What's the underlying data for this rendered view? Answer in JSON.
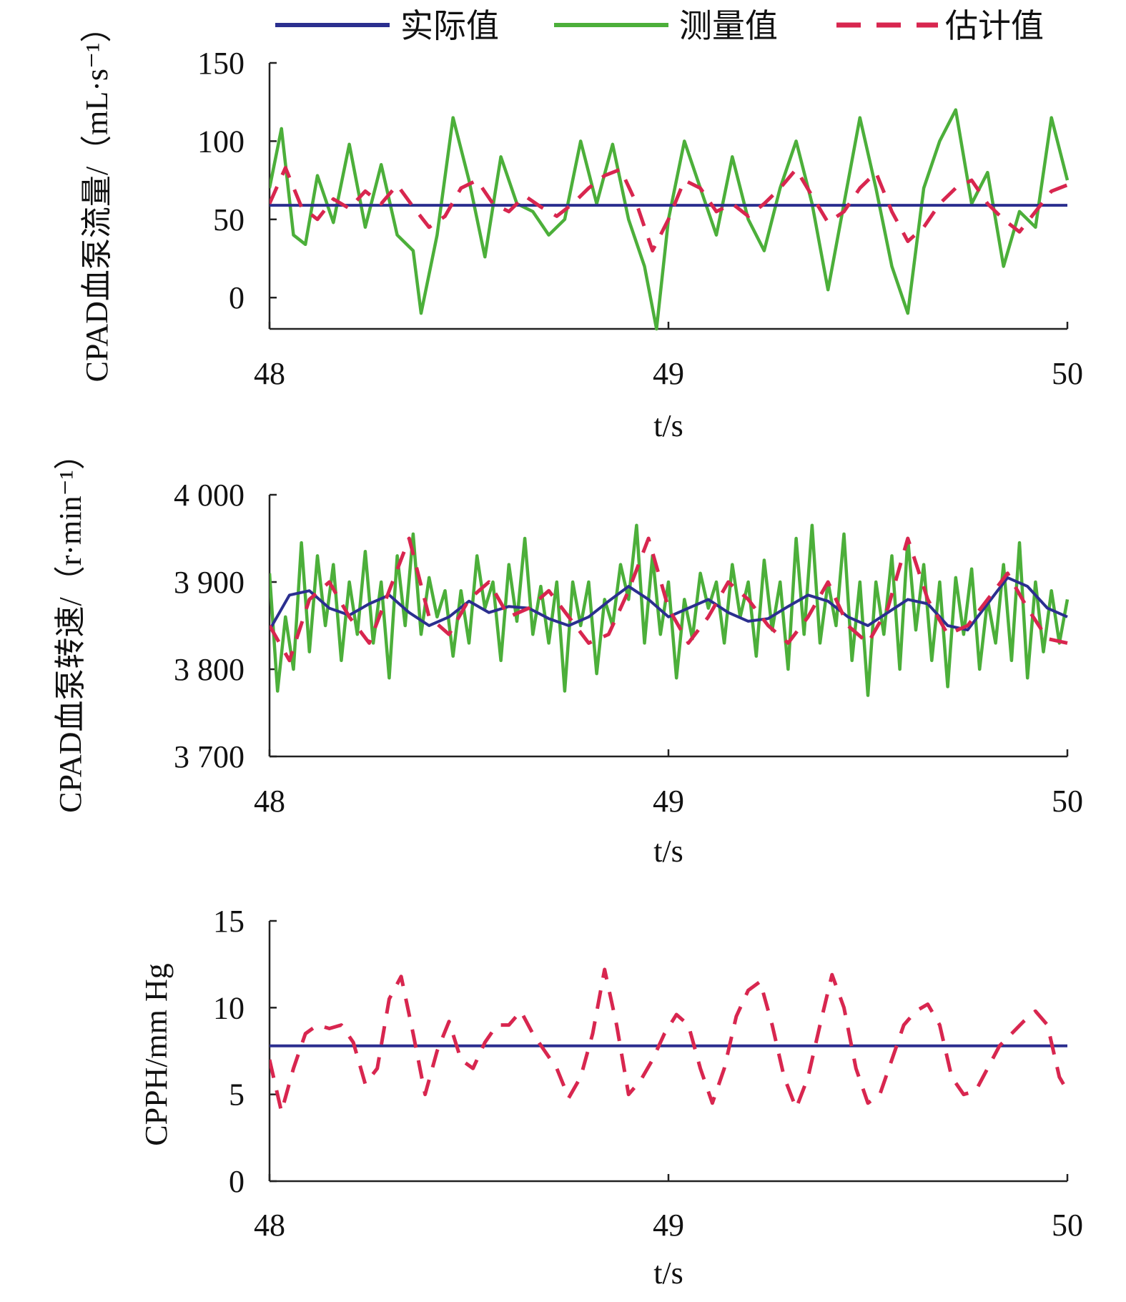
{
  "legend": [
    {
      "label": "实际值",
      "color": "#2b2f8f",
      "dash": "solid"
    },
    {
      "label": "测量值",
      "color": "#4caf3a",
      "dash": "solid"
    },
    {
      "label": "估计值",
      "color": "#d8264f",
      "dash": "dashed"
    }
  ],
  "chart_data": [
    {
      "type": "line",
      "ylabel": "CPAD血泵流量/（mL·s⁻¹）",
      "xlabel": "t/s",
      "xlim": [
        48,
        50
      ],
      "ylim": [
        -20,
        150
      ],
      "xticks": [
        "48",
        "49",
        "50"
      ],
      "yticks": [
        {
          "value": 0,
          "label": "0"
        },
        {
          "value": 50,
          "label": "50"
        },
        {
          "value": 100,
          "label": "100"
        },
        {
          "value": 150,
          "label": "150"
        }
      ],
      "series": [
        {
          "name": "实际值",
          "color": "#2b2f8f",
          "dash": "solid",
          "x": [
            48.0,
            50.0
          ],
          "values": [
            59,
            59
          ]
        },
        {
          "name": "测量值",
          "color": "#4caf3a",
          "dash": "solid",
          "x": [
            48.0,
            48.03,
            48.06,
            48.09,
            48.12,
            48.16,
            48.2,
            48.24,
            48.28,
            48.32,
            48.36,
            48.38,
            48.42,
            48.46,
            48.5,
            48.54,
            48.58,
            48.62,
            48.66,
            48.7,
            48.74,
            48.78,
            48.82,
            48.86,
            48.9,
            48.94,
            48.97,
            49.0,
            49.04,
            49.08,
            49.12,
            49.16,
            49.2,
            49.24,
            49.28,
            49.32,
            49.36,
            49.4,
            49.44,
            49.48,
            49.52,
            49.56,
            49.6,
            49.64,
            49.68,
            49.72,
            49.76,
            49.8,
            49.84,
            49.88,
            49.92,
            49.96,
            50.0
          ],
          "values": [
            70,
            108,
            40,
            34,
            78,
            48,
            98,
            45,
            85,
            40,
            30,
            -10,
            40,
            115,
            75,
            26,
            90,
            60,
            55,
            40,
            50,
            100,
            60,
            98,
            50,
            20,
            -20,
            50,
            100,
            70,
            40,
            90,
            50,
            30,
            70,
            100,
            60,
            5,
            60,
            115,
            70,
            20,
            -10,
            70,
            100,
            120,
            60,
            80,
            20,
            55,
            45,
            115,
            75
          ]
        },
        {
          "name": "估计值",
          "color": "#d8264f",
          "dash": "dashed",
          "x": [
            48.0,
            48.04,
            48.08,
            48.12,
            48.16,
            48.2,
            48.24,
            48.28,
            48.32,
            48.36,
            48.4,
            48.44,
            48.48,
            48.52,
            48.56,
            48.6,
            48.64,
            48.68,
            48.72,
            48.76,
            48.8,
            48.84,
            48.88,
            48.92,
            48.96,
            49.0,
            49.04,
            49.08,
            49.12,
            49.16,
            49.2,
            49.24,
            49.28,
            49.32,
            49.36,
            49.4,
            49.44,
            49.48,
            49.52,
            49.56,
            49.6,
            49.64,
            49.68,
            49.72,
            49.76,
            49.8,
            49.84,
            49.88,
            49.92,
            49.96,
            50.0
          ],
          "values": [
            60,
            83,
            58,
            50,
            63,
            57,
            68,
            60,
            72,
            58,
            45,
            52,
            70,
            75,
            60,
            55,
            65,
            58,
            52,
            60,
            70,
            78,
            82,
            60,
            30,
            50,
            75,
            70,
            55,
            60,
            52,
            60,
            70,
            82,
            65,
            48,
            55,
            70,
            80,
            55,
            36,
            45,
            60,
            70,
            75,
            60,
            50,
            42,
            55,
            68,
            72
          ]
        }
      ]
    },
    {
      "type": "line",
      "ylabel": "CPAD血泵转速/（r·min⁻¹）",
      "xlabel": "t/s",
      "xlim": [
        48,
        50
      ],
      "ylim": [
        3700,
        4000
      ],
      "xticks": [
        "48",
        "49",
        "50"
      ],
      "yticks": [
        {
          "value": 3700,
          "label": "3 700"
        },
        {
          "value": 3800,
          "label": "3 800"
        },
        {
          "value": 3900,
          "label": "3 900"
        },
        {
          "value": 4000,
          "label": "4 000"
        }
      ],
      "series": [
        {
          "name": "实际值",
          "color": "#2b2f8f",
          "dash": "solid",
          "x": [
            48.0,
            48.05,
            48.1,
            48.15,
            48.2,
            48.25,
            48.3,
            48.35,
            48.4,
            48.45,
            48.5,
            48.55,
            48.6,
            48.65,
            48.7,
            48.75,
            48.8,
            48.85,
            48.9,
            48.95,
            49.0,
            49.05,
            49.1,
            49.15,
            49.2,
            49.25,
            49.3,
            49.35,
            49.4,
            49.45,
            49.5,
            49.55,
            49.6,
            49.65,
            49.7,
            49.75,
            49.8,
            49.85,
            49.9,
            49.95,
            50.0
          ],
          "values": [
            3845,
            3885,
            3890,
            3870,
            3862,
            3875,
            3885,
            3865,
            3850,
            3860,
            3878,
            3865,
            3872,
            3870,
            3858,
            3850,
            3860,
            3878,
            3895,
            3880,
            3860,
            3870,
            3880,
            3865,
            3855,
            3858,
            3872,
            3885,
            3878,
            3860,
            3850,
            3865,
            3880,
            3875,
            3850,
            3845,
            3875,
            3905,
            3895,
            3870,
            3860
          ]
        },
        {
          "name": "测量值",
          "color": "#4caf3a",
          "dash": "solid",
          "x": [
            48.0,
            48.02,
            48.04,
            48.06,
            48.08,
            48.1,
            48.12,
            48.14,
            48.16,
            48.18,
            48.2,
            48.22,
            48.24,
            48.26,
            48.28,
            48.3,
            48.32,
            48.34,
            48.36,
            48.38,
            48.4,
            48.42,
            48.44,
            48.46,
            48.48,
            48.5,
            48.52,
            48.54,
            48.56,
            48.58,
            48.6,
            48.62,
            48.64,
            48.66,
            48.68,
            48.7,
            48.72,
            48.74,
            48.76,
            48.78,
            48.8,
            48.82,
            48.84,
            48.86,
            48.88,
            48.9,
            48.92,
            48.94,
            48.96,
            48.98,
            49.0,
            49.02,
            49.04,
            49.06,
            49.08,
            49.1,
            49.12,
            49.14,
            49.16,
            49.18,
            49.2,
            49.22,
            49.24,
            49.26,
            49.28,
            49.3,
            49.32,
            49.34,
            49.36,
            49.38,
            49.4,
            49.42,
            49.44,
            49.46,
            49.48,
            49.5,
            49.52,
            49.54,
            49.56,
            49.58,
            49.6,
            49.62,
            49.64,
            49.66,
            49.68,
            49.7,
            49.72,
            49.74,
            49.76,
            49.78,
            49.8,
            49.82,
            49.84,
            49.86,
            49.88,
            49.9,
            49.92,
            49.94,
            49.96,
            49.98,
            50.0
          ],
          "values": [
            3910,
            3775,
            3860,
            3800,
            3945,
            3820,
            3930,
            3850,
            3920,
            3810,
            3900,
            3840,
            3935,
            3830,
            3900,
            3790,
            3930,
            3850,
            3955,
            3840,
            3905,
            3860,
            3890,
            3815,
            3890,
            3830,
            3930,
            3870,
            3900,
            3810,
            3920,
            3855,
            3950,
            3840,
            3895,
            3830,
            3900,
            3775,
            3900,
            3850,
            3900,
            3795,
            3880,
            3850,
            3920,
            3880,
            3965,
            3830,
            3930,
            3840,
            3900,
            3790,
            3880,
            3835,
            3910,
            3870,
            3900,
            3830,
            3920,
            3860,
            3900,
            3815,
            3925,
            3845,
            3900,
            3800,
            3950,
            3840,
            3965,
            3830,
            3900,
            3850,
            3955,
            3810,
            3900,
            3770,
            3900,
            3840,
            3930,
            3800,
            3950,
            3845,
            3920,
            3810,
            3900,
            3780,
            3905,
            3840,
            3915,
            3800,
            3880,
            3830,
            3920,
            3810,
            3945,
            3790,
            3900,
            3820,
            3890,
            3830,
            3880
          ]
        },
        {
          "name": "估计值",
          "color": "#d8264f",
          "dash": "dashed",
          "x": [
            48.0,
            48.05,
            48.1,
            48.15,
            48.2,
            48.25,
            48.3,
            48.35,
            48.4,
            48.45,
            48.5,
            48.55,
            48.6,
            48.65,
            48.7,
            48.75,
            48.8,
            48.85,
            48.9,
            48.95,
            49.0,
            49.05,
            49.1,
            49.15,
            49.2,
            49.25,
            49.3,
            49.35,
            49.4,
            49.45,
            49.5,
            49.55,
            49.6,
            49.65,
            49.7,
            49.75,
            49.8,
            49.85,
            49.9,
            49.95,
            50.0
          ],
          "values": [
            3850,
            3810,
            3880,
            3900,
            3860,
            3830,
            3890,
            3950,
            3860,
            3840,
            3880,
            3900,
            3860,
            3870,
            3890,
            3860,
            3830,
            3840,
            3890,
            3950,
            3870,
            3830,
            3860,
            3900,
            3880,
            3850,
            3830,
            3860,
            3900,
            3850,
            3830,
            3870,
            3950,
            3880,
            3840,
            3850,
            3880,
            3910,
            3870,
            3835,
            3830
          ]
        }
      ]
    },
    {
      "type": "line",
      "ylabel": "CPPH/mm Hg",
      "xlabel": "t/s",
      "xlim": [
        48,
        50
      ],
      "ylim": [
        0,
        15
      ],
      "xticks": [
        "48",
        "49",
        "50"
      ],
      "yticks": [
        {
          "value": 0,
          "label": "0"
        },
        {
          "value": 5,
          "label": "5"
        },
        {
          "value": 10,
          "label": "10"
        },
        {
          "value": 15,
          "label": "15"
        }
      ],
      "series": [
        {
          "name": "实际值",
          "color": "#2b2f8f",
          "dash": "solid",
          "x": [
            48.0,
            50.0
          ],
          "values": [
            7.8,
            7.8
          ]
        },
        {
          "name": "估计值",
          "color": "#d8264f",
          "dash": "dashed",
          "x": [
            48.0,
            48.03,
            48.06,
            48.09,
            48.12,
            48.15,
            48.18,
            48.21,
            48.24,
            48.27,
            48.3,
            48.33,
            48.36,
            48.39,
            48.42,
            48.45,
            48.48,
            48.51,
            48.54,
            48.57,
            48.6,
            48.63,
            48.66,
            48.69,
            48.72,
            48.75,
            48.78,
            48.81,
            48.84,
            48.87,
            48.9,
            48.93,
            48.96,
            48.99,
            49.02,
            49.05,
            49.08,
            49.11,
            49.14,
            49.17,
            49.2,
            49.23,
            49.26,
            49.29,
            49.32,
            49.35,
            49.38,
            49.41,
            49.44,
            49.47,
            49.5,
            49.53,
            49.56,
            49.59,
            49.62,
            49.65,
            49.68,
            49.71,
            49.74,
            49.77,
            49.8,
            49.83,
            49.86,
            49.89,
            49.92,
            49.95,
            49.98,
            50.0
          ],
          "values": [
            7.0,
            4.0,
            6.5,
            8.5,
            9.0,
            8.8,
            9.0,
            8.0,
            5.6,
            6.5,
            10.5,
            11.8,
            8.5,
            5.0,
            7.5,
            9.2,
            7.0,
            6.5,
            8.0,
            9.0,
            9.0,
            9.8,
            8.5,
            7.5,
            6.5,
            4.8,
            6.0,
            8.5,
            12.2,
            9.0,
            5.0,
            5.8,
            7.0,
            8.5,
            9.6,
            9.0,
            6.5,
            4.5,
            6.5,
            9.5,
            11.0,
            11.5,
            9.0,
            6.0,
            4.2,
            6.0,
            9.0,
            11.9,
            10.0,
            6.5,
            4.5,
            5.0,
            7.0,
            9.0,
            9.8,
            10.2,
            9.0,
            6.0,
            5.0,
            5.2,
            6.5,
            7.8,
            8.5,
            9.2,
            9.8,
            9.0,
            6.0,
            5.2
          ]
        }
      ]
    }
  ]
}
